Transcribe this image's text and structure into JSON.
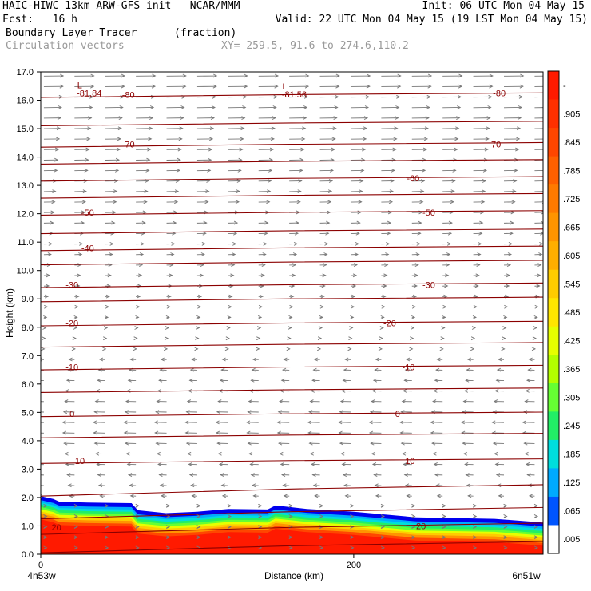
{
  "header": {
    "line1_left": "HAIC-HIWC 13km ARW-GFS init   NCAR/MMM",
    "line1_right": "Init: 06 UTC Mon 04 May 15",
    "line2_left": "Fcst:   16 h",
    "line2_right": "Valid: 22 UTC Mon 04 May 15 (19 LST Mon 04 May 15)",
    "field_name": "Boundary Layer Tracer",
    "field_units": "(fraction)",
    "vectors_label": "Circulation vectors",
    "xy_label": "XY= 259.5, 91.6 to 274.6,110.2"
  },
  "chart_data": {
    "type": "heatmap",
    "title": "Boundary Layer Tracer",
    "xlabel": "Distance (km)",
    "ylabel": "Height (km)",
    "xlim": [
      0,
      321
    ],
    "ylim": [
      0,
      17
    ],
    "x_ticks": [
      0,
      200
    ],
    "y_ticks": [
      "0.0",
      "1.0",
      "2.0",
      "3.0",
      "4.0",
      "5.0",
      "6.0",
      "7.0",
      "8.0",
      "9.0",
      "10.0",
      "11.0",
      "12.0",
      "13.0",
      "14.0",
      "15.0",
      "16.0",
      "17.0"
    ],
    "x_end_labels": [
      "4n53w",
      "6n51w"
    ],
    "colorbar": {
      "labels": [
        "-",
        ".905",
        ".845",
        ".785",
        ".725",
        ".665",
        ".605",
        ".545",
        ".485",
        ".425",
        ".365",
        ".305",
        ".245",
        ".185",
        ".125",
        ".065",
        ".005"
      ],
      "colors": [
        "#ff1a00",
        "#ff3000",
        "#ff4600",
        "#ff6000",
        "#ff7a00",
        "#ff9400",
        "#ffae00",
        "#ffcc00",
        "#ffe600",
        "#e6ff00",
        "#b3ff00",
        "#66ff33",
        "#22ee66",
        "#00dddd",
        "#00aaff",
        "#0055ff",
        "#ffffff"
      ]
    },
    "contour_labels": [
      {
        "x": 10,
        "y": 0.95,
        "text": "20"
      },
      {
        "x": 243,
        "y": 1.0,
        "text": "20"
      },
      {
        "x": 25,
        "y": 3.3,
        "text": "10"
      },
      {
        "x": 236,
        "y": 3.3,
        "text": "10"
      },
      {
        "x": 20,
        "y": 4.95,
        "text": "0"
      },
      {
        "x": 228,
        "y": 4.95,
        "text": "0"
      },
      {
        "x": 20,
        "y": 6.6,
        "text": "-10"
      },
      {
        "x": 235,
        "y": 6.6,
        "text": "-10"
      },
      {
        "x": 20,
        "y": 8.15,
        "text": "-20"
      },
      {
        "x": 223,
        "y": 8.15,
        "text": "-20"
      },
      {
        "x": 20,
        "y": 9.5,
        "text": "-30"
      },
      {
        "x": 248,
        "y": 9.5,
        "text": "-30"
      },
      {
        "x": 30,
        "y": 10.8,
        "text": "-40"
      },
      {
        "x": 30,
        "y": 12.05,
        "text": "-50"
      },
      {
        "x": 248,
        "y": 12.05,
        "text": "-50"
      },
      {
        "x": 238,
        "y": 13.25,
        "text": "-60"
      },
      {
        "x": 56,
        "y": 14.45,
        "text": "-70"
      },
      {
        "x": 290,
        "y": 14.45,
        "text": "-70"
      },
      {
        "x": 56,
        "y": 16.2,
        "text": "-80"
      },
      {
        "x": 293,
        "y": 16.25,
        "text": "-80"
      }
    ],
    "low_markers": [
      {
        "x": 31,
        "y": 16.65,
        "label": "L",
        "value": "-81.84"
      },
      {
        "x": 162,
        "y": 16.6,
        "label": "L",
        "value": "-81.56"
      }
    ],
    "grid": false,
    "legend": "right"
  }
}
